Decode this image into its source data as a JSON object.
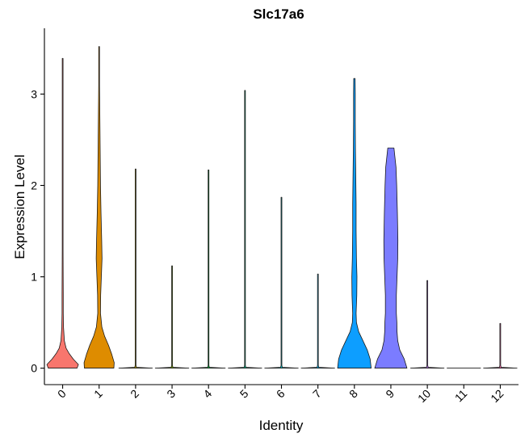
{
  "chart_data": {
    "type": "violin",
    "title": "Slc17a6",
    "xlabel": "Identity",
    "ylabel": "Expression Level",
    "ylim": [
      -0.18,
      3.72
    ],
    "yticks": [
      0,
      1,
      2,
      3
    ],
    "categories": [
      "0",
      "1",
      "2",
      "3",
      "4",
      "5",
      "6",
      "7",
      "8",
      "9",
      "10",
      "11",
      "12"
    ],
    "series": [
      {
        "name": "0",
        "color": "#F8766D",
        "max": 3.39,
        "profile": [
          [
            0,
            0.84
          ],
          [
            0.04,
            0.92
          ],
          [
            0.1,
            0.62
          ],
          [
            0.16,
            0.38
          ],
          [
            0.22,
            0.2
          ],
          [
            0.3,
            0.1
          ],
          [
            0.45,
            0.05
          ],
          [
            0.6,
            0.035
          ],
          [
            0.8,
            0.035
          ],
          [
            1.0,
            0.03
          ],
          [
            1.3,
            0.022
          ],
          [
            1.7,
            0.012
          ],
          [
            2.2,
            0.007
          ],
          [
            3.39,
            0.005
          ]
        ]
      },
      {
        "name": "1",
        "color": "#DE8C00",
        "max": 3.52,
        "profile": [
          [
            0,
            0.86
          ],
          [
            0.06,
            0.88
          ],
          [
            0.15,
            0.74
          ],
          [
            0.25,
            0.55
          ],
          [
            0.35,
            0.32
          ],
          [
            0.45,
            0.16
          ],
          [
            0.6,
            0.08
          ],
          [
            0.8,
            0.09
          ],
          [
            1.0,
            0.13
          ],
          [
            1.2,
            0.17
          ],
          [
            1.4,
            0.15
          ],
          [
            1.7,
            0.11
          ],
          [
            2.0,
            0.08
          ],
          [
            2.4,
            0.06
          ],
          [
            2.8,
            0.04
          ],
          [
            3.1,
            0.02
          ],
          [
            3.52,
            0.005
          ]
        ]
      },
      {
        "name": "2",
        "color": "#B79F00",
        "max": 2.18,
        "profile": [
          [
            0,
            0.98
          ],
          [
            0.01,
            0.05
          ],
          [
            0.03,
            0.006
          ],
          [
            2.18,
            0.006
          ]
        ]
      },
      {
        "name": "3",
        "color": "#7CAE00",
        "max": 1.12,
        "profile": [
          [
            0,
            0.98
          ],
          [
            0.01,
            0.05
          ],
          [
            0.03,
            0.006
          ],
          [
            1.12,
            0.006
          ]
        ]
      },
      {
        "name": "4",
        "color": "#00BA38",
        "max": 2.17,
        "profile": [
          [
            0,
            0.98
          ],
          [
            0.01,
            0.05
          ],
          [
            0.03,
            0.006
          ],
          [
            2.17,
            0.006
          ]
        ]
      },
      {
        "name": "5",
        "color": "#00C08B",
        "max": 3.04,
        "profile": [
          [
            0,
            0.98
          ],
          [
            0.01,
            0.05
          ],
          [
            0.03,
            0.006
          ],
          [
            3.04,
            0.006
          ]
        ]
      },
      {
        "name": "6",
        "color": "#00BFC4",
        "max": 1.87,
        "profile": [
          [
            0,
            0.98
          ],
          [
            0.01,
            0.05
          ],
          [
            0.03,
            0.006
          ],
          [
            1.87,
            0.006
          ]
        ]
      },
      {
        "name": "7",
        "color": "#00B4F0",
        "max": 1.03,
        "profile": [
          [
            0,
            0.98
          ],
          [
            0.01,
            0.05
          ],
          [
            0.03,
            0.006
          ],
          [
            1.03,
            0.006
          ]
        ]
      },
      {
        "name": "8",
        "color": "#0D9EFF",
        "max": 3.17,
        "profile": [
          [
            0,
            0.98
          ],
          [
            0.1,
            0.92
          ],
          [
            0.2,
            0.75
          ],
          [
            0.3,
            0.5
          ],
          [
            0.4,
            0.25
          ],
          [
            0.5,
            0.12
          ],
          [
            0.6,
            0.1
          ],
          [
            0.8,
            0.14
          ],
          [
            1.0,
            0.15
          ],
          [
            1.2,
            0.12
          ],
          [
            1.5,
            0.1
          ],
          [
            1.8,
            0.1
          ],
          [
            2.1,
            0.08
          ],
          [
            2.4,
            0.06
          ],
          [
            2.7,
            0.05
          ],
          [
            3.0,
            0.05
          ],
          [
            3.17,
            0.04
          ]
        ]
      },
      {
        "name": "9",
        "color": "#7B7CFF",
        "max": 2.41,
        "profile": [
          [
            0,
            0.94
          ],
          [
            0.1,
            0.78
          ],
          [
            0.2,
            0.52
          ],
          [
            0.3,
            0.4
          ],
          [
            0.4,
            0.36
          ],
          [
            0.5,
            0.35
          ],
          [
            0.6,
            0.32
          ],
          [
            0.8,
            0.32
          ],
          [
            1.0,
            0.36
          ],
          [
            1.2,
            0.4
          ],
          [
            1.4,
            0.41
          ],
          [
            1.7,
            0.38
          ],
          [
            2.0,
            0.34
          ],
          [
            2.2,
            0.3
          ],
          [
            2.41,
            0.18
          ]
        ]
      },
      {
        "name": "10",
        "color": "#C77CFF",
        "max": 0.96,
        "profile": [
          [
            0,
            0.98
          ],
          [
            0.01,
            0.05
          ],
          [
            0.03,
            0.006
          ],
          [
            0.58,
            0.01
          ],
          [
            0.62,
            0.006
          ],
          [
            0.96,
            0.006
          ]
        ]
      },
      {
        "name": "11",
        "color": "#F564E3",
        "max": 0.0,
        "profile": [
          [
            0,
            0.98
          ]
        ]
      },
      {
        "name": "12",
        "color": "#FF64B0",
        "max": 0.49,
        "profile": [
          [
            0,
            0.98
          ],
          [
            0.01,
            0.05
          ],
          [
            0.03,
            0.006
          ],
          [
            0.49,
            0.006
          ]
        ]
      }
    ]
  }
}
